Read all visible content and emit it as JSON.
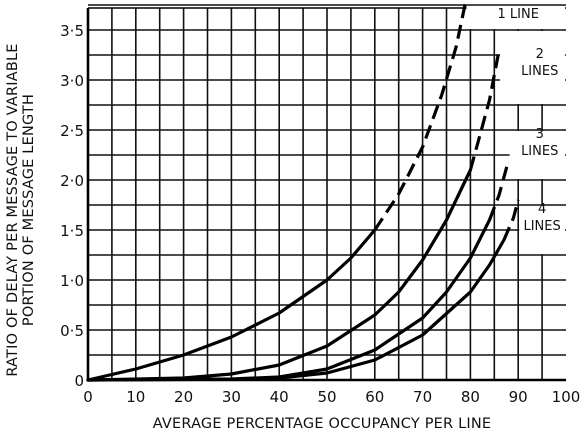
{
  "chart_data": {
    "type": "line",
    "xlabel": "AVERAGE PERCENTAGE OCCUPANCY PER LINE",
    "ylabel": [
      "RATIO OF DELAY PER MESSAGE TO VARIABLE",
      "PORTION OF MESSAGE LENGTH"
    ],
    "xlim": [
      0,
      100
    ],
    "ylim": [
      0,
      3.75
    ],
    "x_ticks": [
      0,
      10,
      20,
      30,
      40,
      50,
      60,
      70,
      80,
      90,
      100
    ],
    "x_tick_labels": [
      "0",
      "10",
      "20",
      "30",
      "40",
      "50",
      "60",
      "70",
      "80",
      "90",
      "100"
    ],
    "y_ticks": [
      0,
      0.5,
      1.0,
      1.5,
      2.0,
      2.5,
      3.0,
      3.5
    ],
    "y_tick_labels": [
      "0",
      "0·5",
      "1·0",
      "1·5",
      "2·0",
      "2·5",
      "3·0",
      "3·5"
    ],
    "grid": true,
    "series": [
      {
        "label_lines": [
          "1 LINE"
        ],
        "x": [
          0,
          10,
          20,
          30,
          40,
          50,
          55,
          60,
          65,
          70,
          74,
          77,
          79,
          80
        ],
        "y": [
          0,
          0.11,
          0.25,
          0.43,
          0.67,
          1.0,
          1.22,
          1.5,
          1.86,
          2.33,
          2.85,
          3.33,
          3.78,
          4.0
        ],
        "dashed_from_x": 60
      },
      {
        "label_lines": [
          "2",
          "LINES"
        ],
        "x": [
          0,
          20,
          30,
          40,
          50,
          60,
          65,
          70,
          75,
          80,
          82,
          84,
          86
        ],
        "y": [
          0,
          0.02,
          0.06,
          0.15,
          0.34,
          0.65,
          0.88,
          1.2,
          1.6,
          2.1,
          2.45,
          2.8,
          3.3
        ],
        "dashed_from_x": 80
      },
      {
        "label_lines": [
          "3",
          "LINES"
        ],
        "x": [
          0,
          30,
          40,
          50,
          60,
          70,
          75,
          80,
          84,
          86,
          88
        ],
        "y": [
          0,
          0.01,
          0.03,
          0.11,
          0.3,
          0.62,
          0.88,
          1.22,
          1.6,
          1.85,
          2.2
        ],
        "dashed_from_x": 84
      },
      {
        "label_lines": [
          "4",
          "LINES"
        ],
        "x": [
          0,
          35,
          40,
          50,
          60,
          70,
          80,
          84,
          87,
          89,
          90
        ],
        "y": [
          0,
          0.01,
          0.02,
          0.07,
          0.2,
          0.45,
          0.88,
          1.15,
          1.4,
          1.62,
          1.8
        ],
        "dashed_from_x": 87
      }
    ]
  }
}
